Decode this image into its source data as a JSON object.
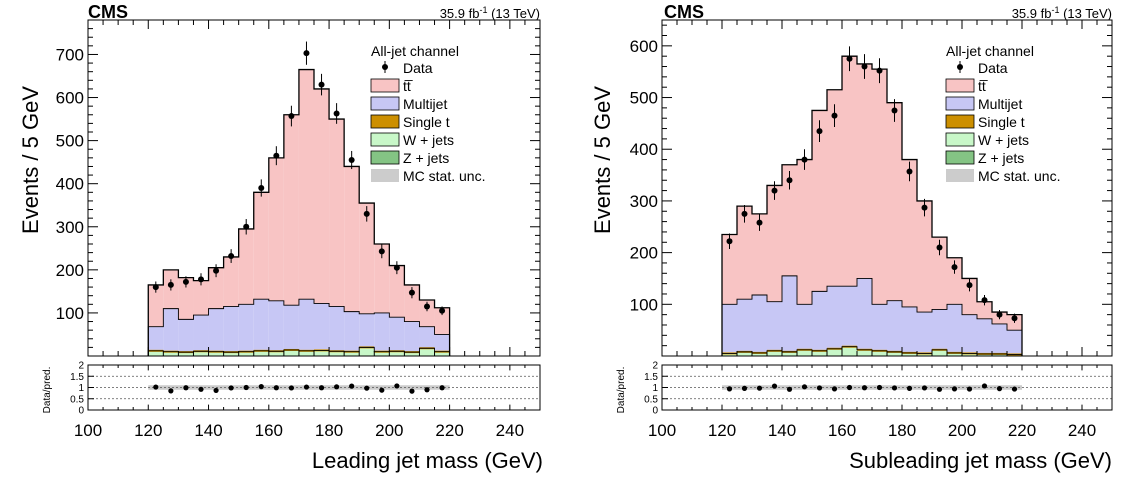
{
  "colors": {
    "ttbar": "#f8c4c4",
    "multijet": "#c7c7f5",
    "singlet": "#cc8f00",
    "wjets": "#c8f7c8",
    "zjets": "#84c484",
    "mcstat": "#cccccc",
    "data": "#000000"
  },
  "chart_data": [
    {
      "type": "bar",
      "cms_label": "CMS",
      "lumi_value": "35.9 fb",
      "lumi_exp": "-1",
      "lumi_energy": " (13 TeV)",
      "channel": "All-jet channel",
      "xlabel": "Leading jet mass (GeV)",
      "ylabel": "Events / 5 GeV",
      "ratio_ylabel": "Data/pred.",
      "xlim": [
        100,
        250
      ],
      "ylim": [
        0,
        780
      ],
      "ratio_ylim": [
        0,
        2
      ],
      "x_ticks": [
        "100",
        "120",
        "140",
        "160",
        "180",
        "200",
        "220",
        "240"
      ],
      "y_ticks": [
        "100",
        "200",
        "300",
        "400",
        "500",
        "600",
        "700"
      ],
      "ratio_ticks": [
        "0",
        "0.5",
        "1",
        "1.5",
        "2"
      ],
      "legend": {
        "position": "top-right",
        "entries": [
          "Data",
          "tt̅",
          "Multijet",
          "Single t",
          "W + jets",
          "Z + jets",
          "MC stat. unc."
        ]
      },
      "bin_edges": [
        120,
        125,
        130,
        135,
        140,
        145,
        150,
        155,
        160,
        165,
        170,
        175,
        180,
        185,
        190,
        195,
        200,
        205,
        210,
        215,
        220
      ],
      "series": {
        "total": [
          165,
          200,
          182,
          175,
          205,
          230,
          295,
          380,
          460,
          560,
          665,
          620,
          550,
          440,
          355,
          260,
          210,
          165,
          130,
          112
        ],
        "multijet_top": [
          68,
          110,
          85,
          95,
          110,
          115,
          120,
          132,
          128,
          118,
          132,
          122,
          115,
          103,
          98,
          100,
          90,
          80,
          68,
          50
        ],
        "minor_top": [
          12,
          10,
          9,
          11,
          10,
          9,
          10,
          12,
          11,
          14,
          12,
          13,
          11,
          10,
          20,
          10,
          11,
          9,
          18,
          10
        ],
        "data": [
          160,
          165,
          172,
          178,
          198,
          232,
          300,
          390,
          465,
          557,
          703,
          630,
          563,
          455,
          330,
          243,
          205,
          147,
          115,
          105
        ],
        "data_err": [
          13,
          13,
          13,
          14,
          15,
          16,
          18,
          20,
          22,
          24,
          27,
          25,
          24,
          21,
          18,
          16,
          15,
          13,
          11,
          10
        ],
        "ratio": [
          1.02,
          0.85,
          0.99,
          0.92,
          0.87,
          0.98,
          1.0,
          1.04,
          0.99,
          0.98,
          1.02,
          0.99,
          1.03,
          1.06,
          0.97,
          0.88,
          1.07,
          0.84,
          0.9,
          0.99
        ]
      }
    },
    {
      "type": "bar",
      "cms_label": "CMS",
      "lumi_value": "35.9 fb",
      "lumi_exp": "-1",
      "lumi_energy": " (13 TeV)",
      "channel": "All-jet channel",
      "xlabel": "Subleading jet mass (GeV)",
      "ylabel": "Events / 5 GeV",
      "ratio_ylabel": "Data/pred.",
      "xlim": [
        100,
        250
      ],
      "ylim": [
        0,
        650
      ],
      "ratio_ylim": [
        0,
        2
      ],
      "x_ticks": [
        "100",
        "120",
        "140",
        "160",
        "180",
        "200",
        "220",
        "240"
      ],
      "y_ticks": [
        "100",
        "200",
        "300",
        "400",
        "500",
        "600"
      ],
      "ratio_ticks": [
        "0",
        "0.5",
        "1",
        "1.5",
        "2"
      ],
      "legend": {
        "position": "top-right",
        "entries": [
          "Data",
          "tt̅",
          "Multijet",
          "Single t",
          "W + jets",
          "Z + jets",
          "MC stat. unc."
        ]
      },
      "bin_edges": [
        120,
        125,
        130,
        135,
        140,
        145,
        150,
        155,
        160,
        165,
        170,
        175,
        180,
        185,
        190,
        195,
        200,
        205,
        210,
        215,
        220
      ],
      "series": {
        "total": [
          235,
          290,
          275,
          330,
          370,
          380,
          475,
          515,
          580,
          565,
          555,
          490,
          380,
          300,
          230,
          190,
          150,
          105,
          85,
          80
        ],
        "multijet_top": [
          100,
          110,
          118,
          105,
          155,
          100,
          125,
          135,
          135,
          150,
          100,
          107,
          95,
          85,
          90,
          100,
          80,
          72,
          62,
          50
        ],
        "minor_top": [
          5,
          8,
          6,
          10,
          8,
          12,
          10,
          14,
          18,
          12,
          10,
          8,
          6,
          5,
          12,
          6,
          5,
          4,
          4,
          3
        ],
        "data": [
          222,
          275,
          258,
          320,
          340,
          380,
          435,
          465,
          575,
          560,
          552,
          475,
          357,
          287,
          210,
          172,
          137,
          108,
          80,
          73
        ],
        "data_err": [
          15,
          17,
          16,
          18,
          18,
          20,
          21,
          22,
          24,
          24,
          24,
          22,
          19,
          17,
          15,
          13,
          12,
          10,
          9,
          9
        ],
        "ratio": [
          0.94,
          0.96,
          0.97,
          1.06,
          0.92,
          1.03,
          0.98,
          0.94,
          1.0,
          0.99,
          1.0,
          0.98,
          0.96,
          0.98,
          0.92,
          0.94,
          0.93,
          1.07,
          0.95,
          0.93
        ]
      }
    }
  ]
}
